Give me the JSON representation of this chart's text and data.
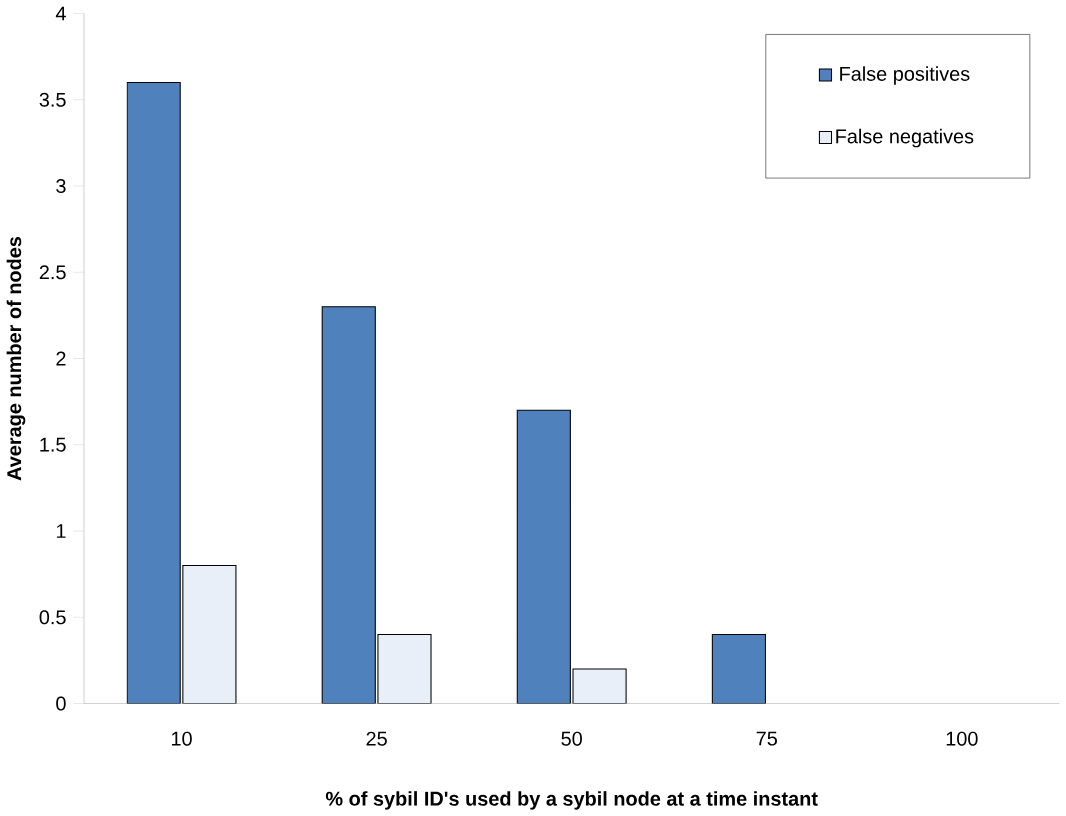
{
  "chart_data": {
    "type": "bar",
    "xlabel": "% of sybil ID's used by a sybil node at a time instant",
    "ylabel": "Average number of nodes",
    "categories": [
      "10",
      "25",
      "50",
      "75",
      "100"
    ],
    "series": [
      {
        "name": "False positives",
        "color": "#4f81bd",
        "values": [
          3.6,
          2.3,
          1.7,
          0.4,
          null
        ]
      },
      {
        "name": "False negatives",
        "color": "#e9eff8",
        "values": [
          0.8,
          0.4,
          0.2,
          null,
          null
        ]
      }
    ],
    "ylim": [
      0,
      4
    ],
    "yticks": [
      0,
      0.5,
      1,
      1.5,
      2,
      2.5,
      3,
      3.5,
      4
    ],
    "grid": false,
    "legend": "top right"
  }
}
